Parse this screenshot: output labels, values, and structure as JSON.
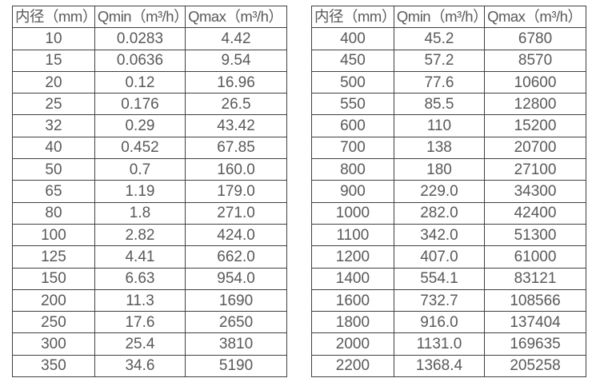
{
  "page": {
    "background": "#ffffff",
    "text_color": "#595959",
    "border_color": "#404040"
  },
  "left_table": {
    "headers": [
      "内径（mm）",
      "Qmin（m³/h）",
      "Qmax（m³/h）"
    ],
    "rows": [
      [
        "10",
        "0.0283",
        "4.42"
      ],
      [
        "15",
        "0.0636",
        "9.54"
      ],
      [
        "20",
        "0.12",
        "16.96"
      ],
      [
        "25",
        "0.176",
        "26.5"
      ],
      [
        "32",
        "0.29",
        "43.42"
      ],
      [
        "40",
        "0.452",
        "67.85"
      ],
      [
        "50",
        "0.7",
        "160.0"
      ],
      [
        "65",
        "1.19",
        "179.0"
      ],
      [
        "80",
        "1.8",
        "271.0"
      ],
      [
        "100",
        "2.82",
        "424.0"
      ],
      [
        "125",
        "4.41",
        "662.0"
      ],
      [
        "150",
        "6.63",
        "954.0"
      ],
      [
        "200",
        "11.3",
        "1690"
      ],
      [
        "250",
        "17.6",
        "2650"
      ],
      [
        "300",
        "25.4",
        "3810"
      ],
      [
        "350",
        "34.6",
        "5190"
      ]
    ]
  },
  "right_table": {
    "headers": [
      "内径（mm）",
      "Qmin（m³/h）",
      "Qmax（m³/h）"
    ],
    "rows": [
      [
        "400",
        "45.2",
        "6780"
      ],
      [
        "450",
        "57.2",
        "8570"
      ],
      [
        "500",
        "77.6",
        "10600"
      ],
      [
        "550",
        "85.5",
        "12800"
      ],
      [
        "600",
        "110",
        "15200"
      ],
      [
        "700",
        "138",
        "20700"
      ],
      [
        "800",
        "180",
        "27100"
      ],
      [
        "900",
        "229.0",
        "34300"
      ],
      [
        "1000",
        "282.0",
        "42400"
      ],
      [
        "1100",
        "342.0",
        "51300"
      ],
      [
        "1200",
        "407.0",
        "61000"
      ],
      [
        "1400",
        "554.1",
        "83121"
      ],
      [
        "1600",
        "732.7",
        "108566"
      ],
      [
        "1800",
        "916.0",
        "137404"
      ],
      [
        "2000",
        "1131.0",
        "169635"
      ],
      [
        "2200",
        "1368.4",
        "205258"
      ]
    ]
  }
}
